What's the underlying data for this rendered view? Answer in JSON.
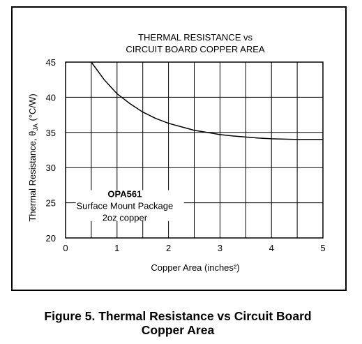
{
  "chart_data": {
    "type": "line",
    "title_lines": [
      "THERMAL RESISTANCE vs",
      "CIRCUIT BOARD COPPER AREA"
    ],
    "xlabel": "Copper Area (inches²)",
    "ylabel": "Thermal Resistance, θJA (°C/W)",
    "xlim": [
      0,
      5
    ],
    "ylim": [
      20,
      45
    ],
    "xticks": [
      0,
      1,
      2,
      3,
      4,
      5
    ],
    "yticks": [
      20,
      25,
      30,
      35,
      40,
      45
    ],
    "grid": true,
    "annotation": {
      "title": "OPA561",
      "lines": [
        "Surface Mount Package",
        "2oz copper"
      ]
    },
    "series": [
      {
        "x": [
          0.5,
          0.75,
          1.0,
          1.25,
          1.5,
          1.75,
          2.0,
          2.25,
          2.5,
          2.75,
          3.0,
          3.25,
          3.5,
          3.75,
          4.0,
          4.25,
          4.5,
          4.75,
          5.0
        ],
        "y": [
          45.0,
          42.5,
          40.5,
          39.1,
          37.9,
          37.0,
          36.3,
          35.8,
          35.3,
          35.0,
          34.7,
          34.5,
          34.35,
          34.2,
          34.1,
          34.05,
          34.0,
          34.0,
          34.0
        ]
      }
    ]
  },
  "caption": {
    "line1": "Figure 5. Thermal Resistance vs Circuit Board",
    "line2": "Copper Area"
  }
}
